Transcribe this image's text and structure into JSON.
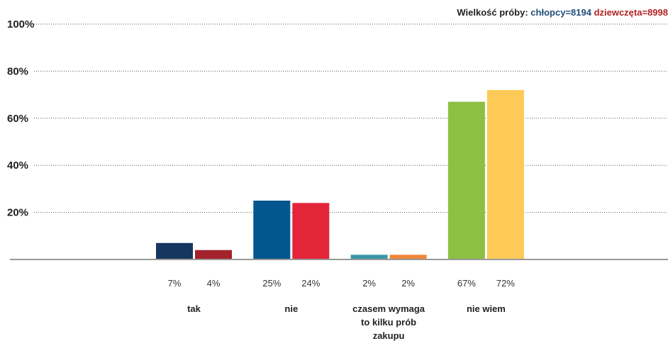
{
  "sample": {
    "label": "Wielkość próby:",
    "boys": "chłopcy=8194",
    "girls": "dziewczęta=8998",
    "boys_color": "#1f4e79",
    "girls_color": "#b22222"
  },
  "chart_data": {
    "type": "bar",
    "ylim": [
      0,
      100
    ],
    "yticks": [
      "20%",
      "40%",
      "60%",
      "80%",
      "100%"
    ],
    "ytick_values": [
      20,
      40,
      60,
      80,
      100
    ],
    "grid": "horizontal-dotted",
    "categories": [
      {
        "label_lines": [
          "tak"
        ],
        "values": [
          7,
          4
        ],
        "value_labels": [
          "7%",
          "4%"
        ],
        "colors": [
          "#15365e",
          "#a3222b"
        ]
      },
      {
        "label_lines": [
          "nie"
        ],
        "values": [
          25,
          24
        ],
        "value_labels": [
          "25%",
          "24%"
        ],
        "colors": [
          "#03578f",
          "#e3253a"
        ]
      },
      {
        "label_lines": [
          "czasem wymaga",
          "to kilku prób",
          "zakupu"
        ],
        "values": [
          2,
          2
        ],
        "value_labels": [
          "2%",
          "2%"
        ],
        "colors": [
          "#3a98a8",
          "#ee8639"
        ]
      },
      {
        "label_lines": [
          "nie wiem"
        ],
        "values": [
          67,
          72
        ],
        "value_labels": [
          "67%",
          "72%"
        ],
        "colors": [
          "#8cc043",
          "#fdca58"
        ]
      }
    ]
  }
}
